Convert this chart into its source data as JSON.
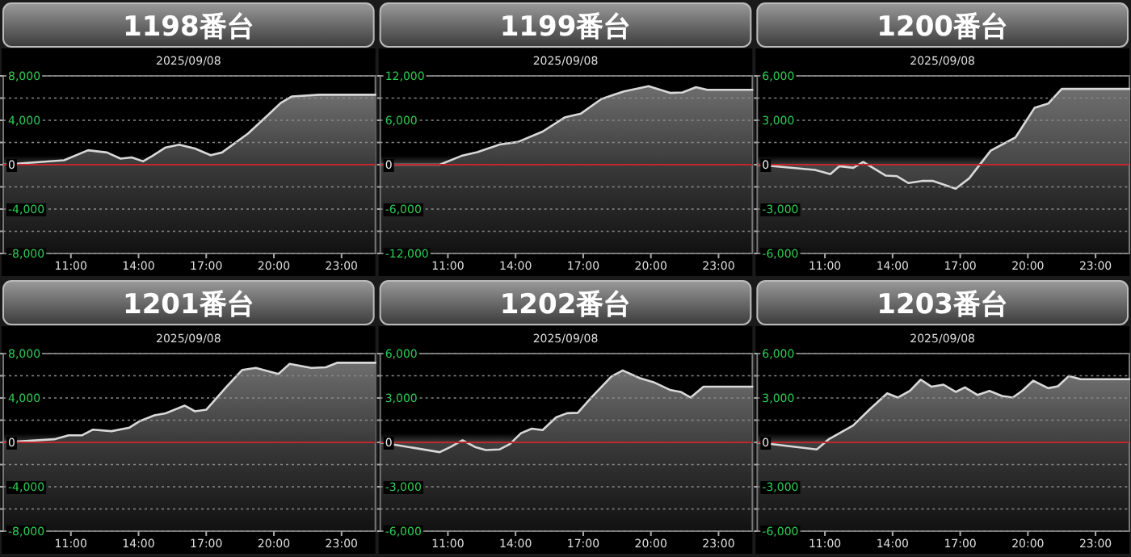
{
  "chart_data": [
    {
      "type": "area",
      "title": "1198番台",
      "subtitle": "2025/09/08",
      "xlim": [
        8,
        24.5
      ],
      "xticks": [
        {
          "value": 11,
          "label": "11:00"
        },
        {
          "value": 14,
          "label": "14:00"
        },
        {
          "value": 17,
          "label": "17:00"
        },
        {
          "value": 20,
          "label": "20:00"
        },
        {
          "value": 23,
          "label": "23:00"
        }
      ],
      "ylim": [
        -8000,
        8000
      ],
      "yticks": [
        {
          "value": 8000,
          "label": "8,000"
        },
        {
          "value": 6000,
          "label": null
        },
        {
          "value": 4000,
          "label": "4,000"
        },
        {
          "value": 2000,
          "label": null
        },
        {
          "value": 0,
          "label": "0"
        },
        {
          "value": -2000,
          "label": null
        },
        {
          "value": -4000,
          "label": "-4,000"
        },
        {
          "value": -6000,
          "label": null
        },
        {
          "value": -8000,
          "label": "-8,000"
        }
      ],
      "grid": "y",
      "ref_lines": [
        {
          "axis": "y",
          "value": 0,
          "color": "#c0282d"
        }
      ],
      "x": [
        8,
        10.7,
        11.76,
        12.6,
        13.2,
        13.7,
        14.2,
        14.6,
        15.2,
        15.8,
        16.5,
        17.2,
        17.7,
        18.85,
        19.7,
        20.3,
        20.8,
        22.0,
        24.5
      ],
      "series": [
        {
          "color": "#d8d8d8",
          "values": [
            0,
            400,
            1300,
            1100,
            550,
            650,
            300,
            770,
            1550,
            1800,
            1450,
            850,
            1100,
            2800,
            4400,
            5550,
            6150,
            6300,
            6300
          ]
        }
      ]
    },
    {
      "type": "area",
      "title": "1199番台",
      "subtitle": "2025/09/08",
      "xlim": [
        8,
        24.5
      ],
      "xticks": [
        {
          "value": 11,
          "label": "11:00"
        },
        {
          "value": 14,
          "label": "14:00"
        },
        {
          "value": 17,
          "label": "17:00"
        },
        {
          "value": 20,
          "label": "20:00"
        },
        {
          "value": 23,
          "label": "23:00"
        }
      ],
      "ylim": [
        -12000,
        12000
      ],
      "yticks": [
        {
          "value": 12000,
          "label": "12,000"
        },
        {
          "value": 9000,
          "label": null
        },
        {
          "value": 6000,
          "label": "6,000"
        },
        {
          "value": 3000,
          "label": null
        },
        {
          "value": 0,
          "label": "0"
        },
        {
          "value": -3000,
          "label": null
        },
        {
          "value": -6000,
          "label": "-6,000"
        },
        {
          "value": -9000,
          "label": null
        },
        {
          "value": -12000,
          "label": "-12,000"
        }
      ],
      "grid": "y",
      "ref_lines": [
        {
          "axis": "y",
          "value": 0,
          "color": "#c0282d"
        }
      ],
      "x": [
        8,
        10.64,
        11.6,
        12.3,
        13.3,
        14.1,
        15.2,
        16.2,
        16.9,
        17.8,
        18.8,
        19.9,
        20.85,
        21.4,
        22.0,
        22.5,
        24.5
      ],
      "series": [
        {
          "color": "#d8d8d8",
          "values": [
            0,
            0,
            1190,
            1680,
            2720,
            3070,
            4470,
            6420,
            6910,
            8860,
            9910,
            10610,
            9700,
            9770,
            10470,
            10120,
            10120
          ]
        }
      ]
    },
    {
      "type": "area",
      "title": "1200番台",
      "subtitle": "2025/09/08",
      "xlim": [
        8,
        24.5
      ],
      "xticks": [
        {
          "value": 11,
          "label": "11:00"
        },
        {
          "value": 14,
          "label": "14:00"
        },
        {
          "value": 17,
          "label": "17:00"
        },
        {
          "value": 20,
          "label": "20:00"
        },
        {
          "value": 23,
          "label": "23:00"
        }
      ],
      "ylim": [
        -6000,
        6000
      ],
      "yticks": [
        {
          "value": 6000,
          "label": "6,000"
        },
        {
          "value": 4500,
          "label": null
        },
        {
          "value": 3000,
          "label": "3,000"
        },
        {
          "value": 1500,
          "label": null
        },
        {
          "value": 0,
          "label": "0"
        },
        {
          "value": -1500,
          "label": null
        },
        {
          "value": -3000,
          "label": "-3,000"
        },
        {
          "value": -4500,
          "label": null
        },
        {
          "value": -6000,
          "label": "-6,000"
        }
      ],
      "grid": "y",
      "ref_lines": [
        {
          "axis": "y",
          "value": 0,
          "color": "#c0282d"
        }
      ],
      "x": [
        8,
        10.56,
        11.24,
        11.65,
        12.26,
        12.7,
        13.7,
        14.2,
        14.7,
        15.3,
        15.8,
        16.8,
        17.4,
        18.35,
        19.45,
        20.3,
        20.9,
        21.5,
        24.5
      ],
      "series": [
        {
          "color": "#d8d8d8",
          "values": [
            0,
            -350,
            -640,
            -100,
            -210,
            180,
            -740,
            -780,
            -1240,
            -1100,
            -1100,
            -1620,
            -920,
            950,
            1840,
            3850,
            4130,
            5120,
            5120
          ]
        }
      ]
    },
    {
      "type": "area",
      "title": "1201番台",
      "subtitle": "2025/09/08",
      "xlim": [
        8,
        24.5
      ],
      "xticks": [
        {
          "value": 11,
          "label": "11:00"
        },
        {
          "value": 14,
          "label": "14:00"
        },
        {
          "value": 17,
          "label": "17:00"
        },
        {
          "value": 20,
          "label": "20:00"
        },
        {
          "value": 23,
          "label": "23:00"
        }
      ],
      "ylim": [
        -8000,
        8000
      ],
      "yticks": [
        {
          "value": 8000,
          "label": "8,000"
        },
        {
          "value": 6000,
          "label": null
        },
        {
          "value": 4000,
          "label": "4,000"
        },
        {
          "value": 2000,
          "label": null
        },
        {
          "value": 0,
          "label": "0"
        },
        {
          "value": -2000,
          "label": null
        },
        {
          "value": -4000,
          "label": "-4,000"
        },
        {
          "value": -6000,
          "label": null
        },
        {
          "value": -8000,
          "label": "-8,000"
        }
      ],
      "grid": "y",
      "ref_lines": [
        {
          "axis": "y",
          "value": 0,
          "color": "#c0282d"
        }
      ],
      "x": [
        8,
        10.26,
        10.9,
        11.5,
        11.98,
        12.8,
        13.6,
        14.07,
        14.7,
        15.2,
        16.04,
        16.5,
        17.0,
        17.9,
        18.6,
        19.2,
        20.2,
        20.7,
        21.66,
        22.3,
        22.8,
        24.5
      ],
      "series": [
        {
          "color": "#d8d8d8",
          "values": [
            0,
            280,
            640,
            640,
            1150,
            1010,
            1330,
            1930,
            2440,
            2620,
            3310,
            2800,
            2940,
            5010,
            6530,
            6710,
            6160,
            7080,
            6710,
            6760,
            7170,
            7170
          ]
        }
      ]
    },
    {
      "type": "area",
      "title": "1202番台",
      "subtitle": "2025/09/08",
      "xlim": [
        8,
        24.5
      ],
      "xticks": [
        {
          "value": 11,
          "label": "11:00"
        },
        {
          "value": 14,
          "label": "14:00"
        },
        {
          "value": 17,
          "label": "17:00"
        },
        {
          "value": 20,
          "label": "20:00"
        },
        {
          "value": 23,
          "label": "23:00"
        }
      ],
      "ylim": [
        -6000,
        6000
      ],
      "yticks": [
        {
          "value": 6000,
          "label": "6,000"
        },
        {
          "value": 4500,
          "label": null
        },
        {
          "value": 3000,
          "label": "3,000"
        },
        {
          "value": 1500,
          "label": null
        },
        {
          "value": 0,
          "label": "0"
        },
        {
          "value": -1500,
          "label": null
        },
        {
          "value": -3000,
          "label": "-3,000"
        },
        {
          "value": -4500,
          "label": null
        },
        {
          "value": -6000,
          "label": "-6,000"
        }
      ],
      "grid": "y",
      "ref_lines": [
        {
          "axis": "y",
          "value": 0,
          "color": "#c0282d"
        }
      ],
      "x": [
        8,
        10.64,
        11.12,
        11.65,
        12.2,
        12.68,
        13.28,
        13.76,
        14.24,
        14.72,
        15.2,
        15.8,
        16.28,
        16.76,
        17.36,
        18.25,
        18.75,
        19.52,
        20.12,
        20.84,
        21.32,
        21.76,
        22.33,
        24.5
      ],
      "series": [
        {
          "color": "#d8d8d8",
          "values": [
            0,
            -660,
            -310,
            140,
            -310,
            -520,
            -480,
            -100,
            620,
            930,
            830,
            1690,
            1970,
            2000,
            3030,
            4450,
            4860,
            4340,
            4070,
            3550,
            3410,
            3030,
            3760,
            3760
          ]
        }
      ]
    },
    {
      "type": "area",
      "title": "1203番台",
      "subtitle": "2025/09/08",
      "xlim": [
        8,
        24.5
      ],
      "xticks": [
        {
          "value": 11,
          "label": "11:00"
        },
        {
          "value": 14,
          "label": "14:00"
        },
        {
          "value": 17,
          "label": "17:00"
        },
        {
          "value": 20,
          "label": "20:00"
        },
        {
          "value": 23,
          "label": "23:00"
        }
      ],
      "ylim": [
        -6000,
        6000
      ],
      "yticks": [
        {
          "value": 6000,
          "label": "6,000"
        },
        {
          "value": 4500,
          "label": null
        },
        {
          "value": 3000,
          "label": "3,000"
        },
        {
          "value": 1500,
          "label": null
        },
        {
          "value": 0,
          "label": "0"
        },
        {
          "value": -1500,
          "label": null
        },
        {
          "value": -3000,
          "label": "-3,000"
        },
        {
          "value": -4500,
          "label": null
        },
        {
          "value": -6000,
          "label": "-6,000"
        }
      ],
      "grid": "y",
      "ref_lines": [
        {
          "axis": "y",
          "value": 0,
          "color": "#c0282d"
        }
      ],
      "x": [
        8,
        10.64,
        11.17,
        12.25,
        12.97,
        13.76,
        14.24,
        14.77,
        15.25,
        15.73,
        16.26,
        16.8,
        17.21,
        17.77,
        18.3,
        18.85,
        19.33,
        19.74,
        20.24,
        20.9,
        21.33,
        21.81,
        22.34,
        24.5
      ],
      "series": [
        {
          "color": "#d8d8d8",
          "values": [
            0,
            -480,
            210,
            1140,
            2210,
            3310,
            3030,
            3480,
            4240,
            3760,
            3900,
            3410,
            3720,
            3200,
            3480,
            3140,
            3030,
            3480,
            4170,
            3660,
            3790,
            4480,
            4270,
            4270
          ]
        }
      ]
    }
  ]
}
